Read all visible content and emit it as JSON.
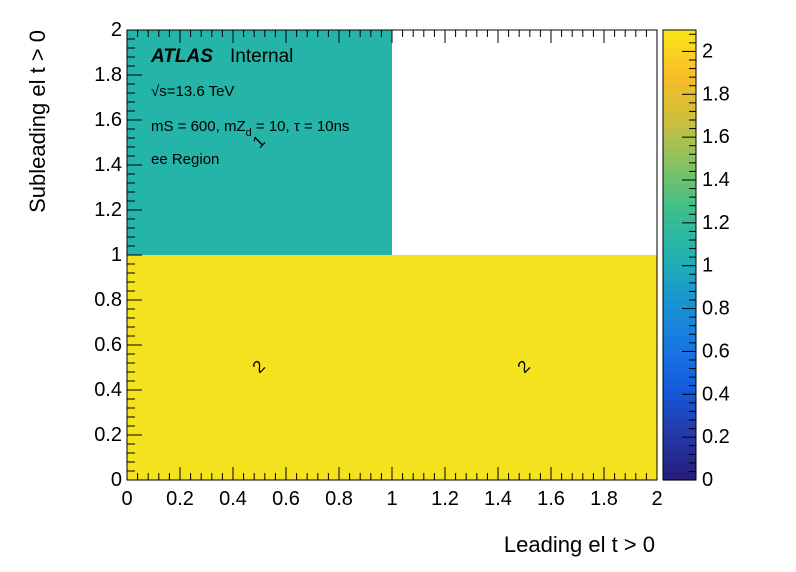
{
  "chart_data": {
    "type": "heatmap",
    "title": "",
    "xlabel": "Leading el t > 0",
    "ylabel": "Subleading el t > 0",
    "xlim": [
      0,
      2
    ],
    "ylim": [
      0,
      2
    ],
    "zlim": [
      0,
      2.1
    ],
    "x_bins": [
      [
        0,
        1
      ],
      [
        1,
        2
      ]
    ],
    "y_bins": [
      [
        0,
        1
      ],
      [
        1,
        2
      ]
    ],
    "cells": [
      {
        "x": [
          0,
          1
        ],
        "y": [
          0,
          1
        ],
        "value": 2,
        "label": "2"
      },
      {
        "x": [
          1,
          2
        ],
        "y": [
          0,
          1
        ],
        "value": 2,
        "label": "2"
      },
      {
        "x": [
          0,
          1
        ],
        "y": [
          1,
          2
        ],
        "value": 1,
        "label": "1"
      }
    ],
    "x_ticks": [
      "0",
      "0.2",
      "0.4",
      "0.6",
      "0.8",
      "1",
      "1.2",
      "1.4",
      "1.6",
      "1.8",
      "2"
    ],
    "y_ticks": [
      "0",
      "0.2",
      "0.4",
      "0.6",
      "0.8",
      "1",
      "1.2",
      "1.4",
      "1.6",
      "1.8",
      "2"
    ],
    "z_ticks": [
      "0",
      "0.2",
      "0.4",
      "0.6",
      "0.8",
      "1",
      "1.2",
      "1.4",
      "1.6",
      "1.8",
      "2"
    ],
    "colormap": "viridis",
    "colors": {
      "value_2": "#f5e21e",
      "value_1": "#25b4a8"
    },
    "grid": false,
    "annotations": {
      "atlas": "ATLAS",
      "internal": "Internal",
      "energy": "√s=13.6 TeV",
      "params": "mS = 600, mZ_d = 10, τ = 10ns",
      "region": "ee Region"
    }
  }
}
